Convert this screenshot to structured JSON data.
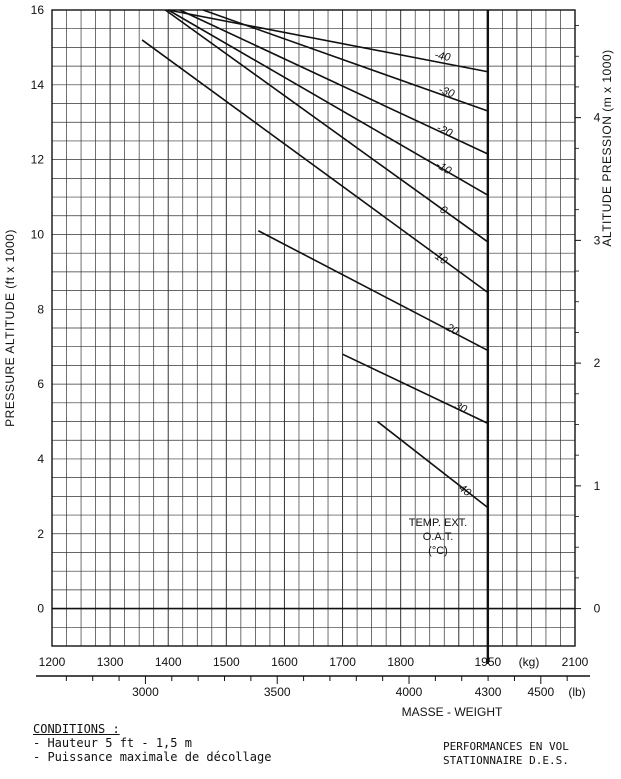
{
  "chart_data": {
    "type": "line",
    "title": "",
    "ylabel": "PRESSURE ALTITUDE (ft x 1000)",
    "y2label": "ALTITUDE PRESSION (m x 1000)",
    "xlabel": "MASSE - WEIGHT",
    "x_kg_unit": "(kg)",
    "x_lb_unit": "(lb)",
    "xlim_kg": [
      1200,
      2100
    ],
    "ylim_ft": [
      -1,
      16
    ],
    "grid": true,
    "y_ticks_ft": [
      0,
      2,
      4,
      6,
      8,
      10,
      12,
      14,
      16
    ],
    "y_ticks_m": [
      0,
      1,
      2,
      3,
      4
    ],
    "x_ticks_kg": [
      1200,
      1300,
      1400,
      1500,
      1600,
      1700,
      1800,
      1950,
      2100
    ],
    "x_ticks_lb": [
      3000,
      3500,
      4000,
      4300,
      4500
    ],
    "max_weight_kg": 1950,
    "legend_title": [
      "TEMP. EXT.",
      "O.A.T.",
      "(°C)"
    ],
    "series": [
      {
        "name": "-40",
        "x": [
          1400,
          1950
        ],
        "y": [
          16,
          14.35
        ]
      },
      {
        "name": "-30",
        "x": [
          1460,
          1950
        ],
        "y": [
          16,
          13.3
        ]
      },
      {
        "name": "-20",
        "x": [
          1420,
          1950
        ],
        "y": [
          16,
          12.15
        ]
      },
      {
        "name": "-10",
        "x": [
          1400,
          1950
        ],
        "y": [
          16,
          11.05
        ]
      },
      {
        "name": "0",
        "x": [
          1395,
          1950
        ],
        "y": [
          16,
          9.8
        ]
      },
      {
        "name": "10",
        "x": [
          1355,
          1950
        ],
        "y": [
          15.2,
          8.45
        ]
      },
      {
        "name": "20",
        "x": [
          1555,
          1950
        ],
        "y": [
          10.1,
          6.9
        ]
      },
      {
        "name": "30",
        "x": [
          1700,
          1950
        ],
        "y": [
          6.8,
          4.95
        ]
      },
      {
        "name": "40",
        "x": [
          1760,
          1950
        ],
        "y": [
          5.0,
          2.7
        ]
      }
    ]
  },
  "conditions": {
    "title": "CONDITIONS :",
    "lines": [
      "- Hauteur 5 ft - 1,5 m",
      "- Puissance maximale de décollage"
    ]
  },
  "footer": [
    "PERFORMANCES EN VOL",
    "STATIONNAIRE D.E.S."
  ]
}
